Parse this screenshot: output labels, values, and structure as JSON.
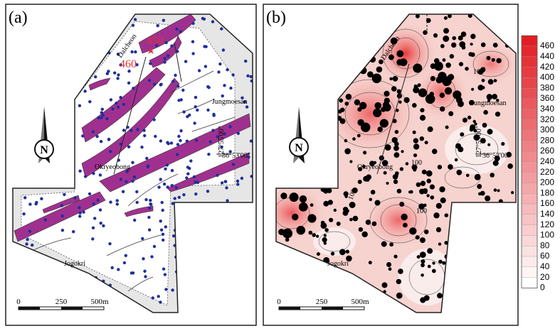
{
  "panels": [
    {
      "label": "(a)"
    },
    {
      "label": "(b)"
    }
  ],
  "elevation_labels": [
    "450",
    "460"
  ],
  "places": {
    "dalcheon": "Dalcheon",
    "jungmoesan": "Jungmoesan",
    "okryeobong": "Okryeobong",
    "jogokri": "Jogokri"
  },
  "coords": {
    "longitude": "127°55'00\"",
    "latitude": "36°53'00\""
  },
  "north": "N",
  "scale": [
    "0",
    "250",
    "500m"
  ],
  "contour_labels": [
    "100",
    "100",
    "100",
    "100"
  ],
  "colorbar": [
    460,
    440,
    420,
    400,
    380,
    360,
    340,
    320,
    300,
    280,
    260,
    240,
    220,
    200,
    180,
    160,
    140,
    120,
    100,
    80,
    60,
    40,
    20,
    0
  ]
}
